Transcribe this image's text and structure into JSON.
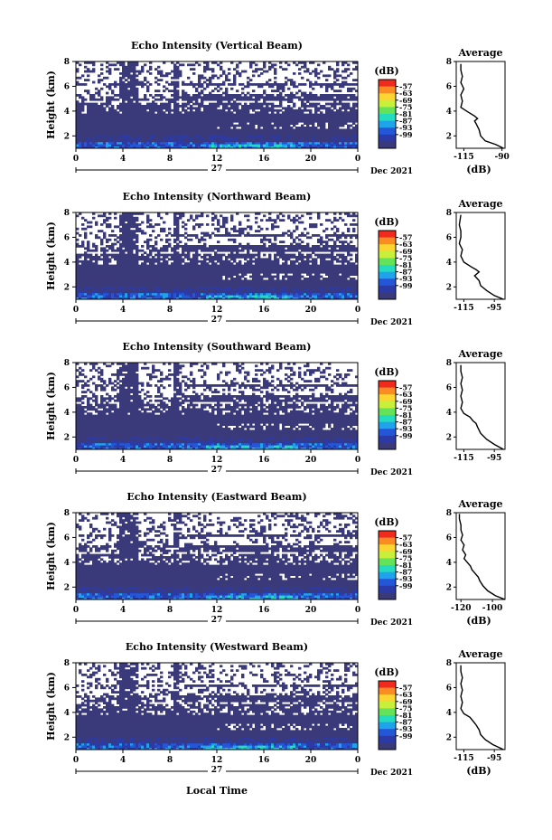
{
  "colorbar": {
    "unit": "(dB)",
    "levels": [
      "-57",
      "-63",
      "-69",
      "-75",
      "-81",
      "-87",
      "-93",
      "-99"
    ],
    "colors": [
      "#f02a1c",
      "#fb8c23",
      "#fbd532",
      "#c8ef3a",
      "#64e35a",
      "#23dcc0",
      "#1fa3ea",
      "#2357d8",
      "#2c3aa8",
      "#3a3a7a"
    ]
  },
  "shared": {
    "ylabel": "Height (km)",
    "xtick_labels": [
      "0",
      "4",
      "8",
      "12",
      "16",
      "20",
      "0"
    ],
    "date_center": "27",
    "date_right": "Dec 2021",
    "xlabel": "Local Time"
  },
  "chart_data": [
    {
      "type": "heatmap",
      "title": "Echo Intensity (Vertical Beam)",
      "ylim": [
        1,
        8
      ],
      "ytick_labels": [
        "2",
        "4",
        "6",
        "8"
      ],
      "xlim": [
        0,
        24
      ],
      "avg": {
        "title": "Average",
        "xtick_labels": [
          "-115",
          "-90"
        ],
        "xlim": [
          -120,
          -88
        ],
        "xlabel": "(dB)",
        "profile": [
          [
            1.0,
            -89
          ],
          [
            1.3,
            -94
          ],
          [
            1.6,
            -101
          ],
          [
            2.0,
            -104
          ],
          [
            2.5,
            -105
          ],
          [
            3.0,
            -107
          ],
          [
            3.2,
            -108
          ],
          [
            3.4,
            -106
          ],
          [
            3.6,
            -108
          ],
          [
            3.9,
            -112
          ],
          [
            4.3,
            -117
          ],
          [
            4.8,
            -116
          ],
          [
            5.3,
            -117
          ],
          [
            5.8,
            -115
          ],
          [
            6.3,
            -117
          ],
          [
            6.8,
            -116
          ],
          [
            7.3,
            -117
          ],
          [
            7.8,
            -117
          ]
        ]
      }
    },
    {
      "type": "heatmap",
      "title": "Echo Intensity (Northward Beam)",
      "ylim": [
        1,
        8
      ],
      "ytick_labels": [
        "2",
        "4",
        "6",
        "8"
      ],
      "xlim": [
        0,
        24
      ],
      "avg": {
        "title": "Average",
        "xtick_labels": [
          "-115",
          "-95"
        ],
        "xlim": [
          -120,
          -88
        ],
        "xlabel": "",
        "profile": [
          [
            1.0,
            -89
          ],
          [
            1.3,
            -95
          ],
          [
            1.7,
            -100
          ],
          [
            2.1,
            -104
          ],
          [
            2.5,
            -105
          ],
          [
            2.9,
            -108
          ],
          [
            3.2,
            -105
          ],
          [
            3.4,
            -107
          ],
          [
            3.6,
            -110
          ],
          [
            4.0,
            -115
          ],
          [
            4.5,
            -117
          ],
          [
            5.0,
            -116
          ],
          [
            5.5,
            -118
          ],
          [
            6.0,
            -117
          ],
          [
            6.5,
            -117
          ],
          [
            7.0,
            -118
          ],
          [
            7.8,
            -117
          ]
        ]
      }
    },
    {
      "type": "heatmap",
      "title": "Echo Intensity (Southward Beam)",
      "ylim": [
        1,
        8
      ],
      "ytick_labels": [
        "2",
        "4",
        "6",
        "8"
      ],
      "xlim": [
        0,
        24
      ],
      "avg": {
        "title": "Average",
        "xtick_labels": [
          "-115",
          "-95"
        ],
        "xlim": [
          -120,
          -88
        ],
        "xlabel": "",
        "profile": [
          [
            1.0,
            -89
          ],
          [
            1.4,
            -95
          ],
          [
            1.8,
            -100
          ],
          [
            2.3,
            -104
          ],
          [
            2.8,
            -106
          ],
          [
            3.1,
            -107
          ],
          [
            3.3,
            -109
          ],
          [
            3.6,
            -111
          ],
          [
            3.9,
            -115
          ],
          [
            4.3,
            -117
          ],
          [
            4.8,
            -116
          ],
          [
            5.3,
            -117
          ],
          [
            5.8,
            -116
          ],
          [
            6.3,
            -117
          ],
          [
            6.8,
            -116
          ],
          [
            7.3,
            -117
          ],
          [
            7.8,
            -117
          ]
        ]
      }
    },
    {
      "type": "heatmap",
      "title": "Echo Intensity (Eastward Beam)",
      "ylim": [
        1,
        8
      ],
      "ytick_labels": [
        "2",
        "4",
        "6",
        "8"
      ],
      "xlim": [
        0,
        24
      ],
      "avg": {
        "title": "Average",
        "xtick_labels": [
          "-120",
          "-100"
        ],
        "xlim": [
          -123,
          -92
        ],
        "xlabel": "(dB)",
        "profile": [
          [
            1.0,
            -92
          ],
          [
            1.3,
            -98
          ],
          [
            1.7,
            -103
          ],
          [
            2.1,
            -106
          ],
          [
            2.5,
            -108
          ],
          [
            2.8,
            -109
          ],
          [
            3.1,
            -111
          ],
          [
            3.4,
            -113
          ],
          [
            3.7,
            -114
          ],
          [
            4.0,
            -116
          ],
          [
            4.3,
            -118
          ],
          [
            4.6,
            -117
          ],
          [
            5.0,
            -119
          ],
          [
            5.4,
            -118
          ],
          [
            5.8,
            -120
          ],
          [
            6.2,
            -119
          ],
          [
            6.6,
            -120
          ],
          [
            7.0,
            -120
          ],
          [
            7.5,
            -121
          ],
          [
            7.9,
            -121
          ]
        ]
      }
    },
    {
      "type": "heatmap",
      "title": "Echo Intensity (Westward Beam)",
      "ylim": [
        1,
        8
      ],
      "ytick_labels": [
        "2",
        "4",
        "6",
        "8"
      ],
      "xlim": [
        0,
        24
      ],
      "avg": {
        "title": "Average",
        "xtick_labels": [
          "-115",
          "-95"
        ],
        "xlim": [
          -120,
          -88
        ],
        "xlabel": "(dB)",
        "profile": [
          [
            1.0,
            -89
          ],
          [
            1.4,
            -96
          ],
          [
            1.8,
            -101
          ],
          [
            2.2,
            -104
          ],
          [
            2.6,
            -105
          ],
          [
            3.0,
            -107
          ],
          [
            3.3,
            -109
          ],
          [
            3.6,
            -111
          ],
          [
            3.9,
            -115
          ],
          [
            4.3,
            -117
          ],
          [
            4.8,
            -116
          ],
          [
            5.3,
            -117
          ],
          [
            5.8,
            -116
          ],
          [
            6.3,
            -117
          ],
          [
            6.8,
            -116
          ],
          [
            7.3,
            -117
          ],
          [
            7.8,
            -117
          ]
        ]
      }
    }
  ]
}
